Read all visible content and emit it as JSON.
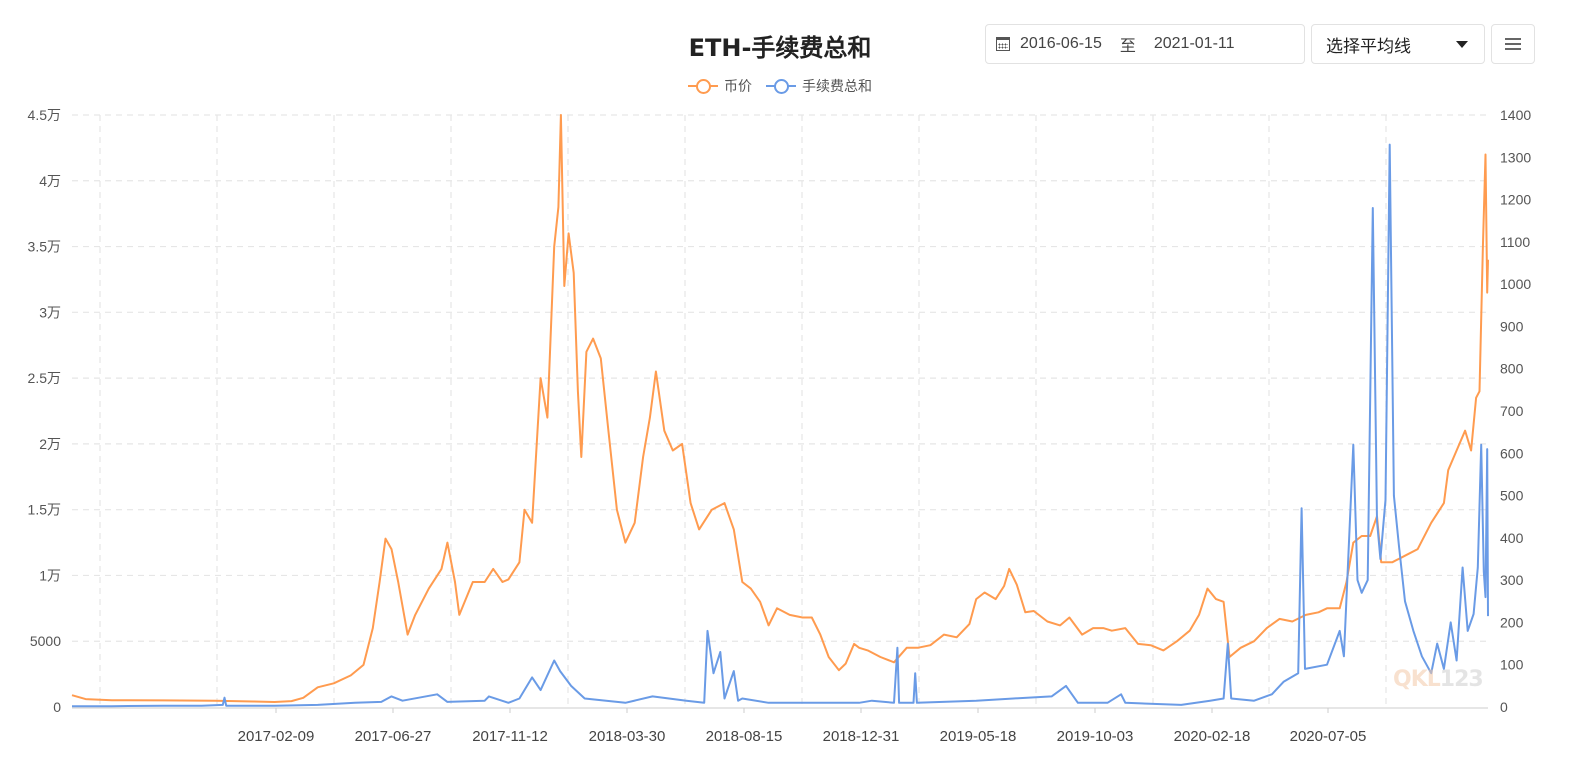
{
  "header": {
    "title": "ETH-手续费总和",
    "date_start": "2016-06-15",
    "date_sep": "至",
    "date_end": "2021-01-11",
    "ma_select_label": "选择平均线",
    "menu_icon": "hamburger-icon",
    "calendar_icon": "calendar-icon"
  },
  "legend": [
    {
      "label": "币价",
      "color": "#ff9b4f"
    },
    {
      "label": "手续费总和",
      "color": "#6a9be6"
    }
  ],
  "watermark": {
    "brand": "QKL",
    "suffix": "123"
  },
  "chart_data": {
    "type": "line",
    "title": "ETH-手续费总和",
    "xlabel": "",
    "ylabel_left": "币价",
    "ylabel_right": "手续费总和",
    "x_range": [
      "2016-06-15",
      "2021-01-11"
    ],
    "x_tick_labels": [
      "2017-02-09",
      "2017-06-27",
      "2017-11-12",
      "2018-03-30",
      "2018-08-15",
      "2018-12-31",
      "2019-05-18",
      "2019-10-03",
      "2020-02-18",
      "2020-07-05"
    ],
    "y_left": {
      "min": 0,
      "max": 45000,
      "ticks": [
        "0",
        "5000",
        "1万",
        "1.5万",
        "2万",
        "2.5万",
        "3万",
        "3.5万",
        "4万",
        "4.5万"
      ]
    },
    "y_right": {
      "min": 0,
      "max": 1400,
      "ticks": [
        "0",
        "100",
        "200",
        "300",
        "400",
        "500",
        "600",
        "700",
        "800",
        "900",
        "1000",
        "1100",
        "1200",
        "1300",
        "1400"
      ]
    },
    "grid": true,
    "legend_position": "top",
    "series": [
      {
        "name": "币价",
        "axis": "left",
        "color": "#ff9b4f",
        "points": [
          [
            "2016-06-15",
            900
          ],
          [
            "2016-07-01",
            600
          ],
          [
            "2016-08-01",
            520
          ],
          [
            "2016-10-01",
            500
          ],
          [
            "2016-12-01",
            480
          ],
          [
            "2017-01-15",
            420
          ],
          [
            "2017-02-09",
            380
          ],
          [
            "2017-03-01",
            450
          ],
          [
            "2017-03-15",
            700
          ],
          [
            "2017-04-01",
            1500
          ],
          [
            "2017-04-20",
            1800
          ],
          [
            "2017-05-10",
            2400
          ],
          [
            "2017-05-25",
            3200
          ],
          [
            "2017-06-05",
            6000
          ],
          [
            "2017-06-13",
            9500
          ],
          [
            "2017-06-20",
            12800
          ],
          [
            "2017-06-27",
            12000
          ],
          [
            "2017-07-05",
            9500
          ],
          [
            "2017-07-16",
            5500
          ],
          [
            "2017-07-25",
            7000
          ],
          [
            "2017-08-10",
            9000
          ],
          [
            "2017-08-25",
            10500
          ],
          [
            "2017-09-01",
            12500
          ],
          [
            "2017-09-10",
            9500
          ],
          [
            "2017-09-15",
            7000
          ],
          [
            "2017-10-01",
            9500
          ],
          [
            "2017-10-15",
            9500
          ],
          [
            "2017-10-25",
            10500
          ],
          [
            "2017-11-05",
            9500
          ],
          [
            "2017-11-12",
            9700
          ],
          [
            "2017-11-25",
            11000
          ],
          [
            "2017-12-01",
            15000
          ],
          [
            "2017-12-10",
            14000
          ],
          [
            "2017-12-20",
            25000
          ],
          [
            "2017-12-28",
            22000
          ],
          [
            "2018-01-05",
            35000
          ],
          [
            "2018-01-10",
            38000
          ],
          [
            "2018-01-13",
            45000
          ],
          [
            "2018-01-17",
            32000
          ],
          [
            "2018-01-22",
            36000
          ],
          [
            "2018-01-28",
            33000
          ],
          [
            "2018-02-02",
            24000
          ],
          [
            "2018-02-06",
            19000
          ],
          [
            "2018-02-12",
            27000
          ],
          [
            "2018-02-20",
            28000
          ],
          [
            "2018-03-01",
            26500
          ],
          [
            "2018-03-10",
            21000
          ],
          [
            "2018-03-20",
            15000
          ],
          [
            "2018-03-30",
            12500
          ],
          [
            "2018-04-10",
            14000
          ],
          [
            "2018-04-20",
            19000
          ],
          [
            "2018-04-28",
            22000
          ],
          [
            "2018-05-05",
            25500
          ],
          [
            "2018-05-15",
            21000
          ],
          [
            "2018-05-25",
            19500
          ],
          [
            "2018-06-05",
            20000
          ],
          [
            "2018-06-15",
            15500
          ],
          [
            "2018-06-25",
            13500
          ],
          [
            "2018-07-10",
            15000
          ],
          [
            "2018-07-25",
            15500
          ],
          [
            "2018-08-05",
            13500
          ],
          [
            "2018-08-15",
            9500
          ],
          [
            "2018-08-25",
            9000
          ],
          [
            "2018-09-05",
            8000
          ],
          [
            "2018-09-15",
            6200
          ],
          [
            "2018-09-25",
            7500
          ],
          [
            "2018-10-10",
            7000
          ],
          [
            "2018-10-25",
            6800
          ],
          [
            "2018-11-05",
            6800
          ],
          [
            "2018-11-15",
            5500
          ],
          [
            "2018-11-25",
            3800
          ],
          [
            "2018-12-07",
            2800
          ],
          [
            "2018-12-15",
            3300
          ],
          [
            "2018-12-25",
            4800
          ],
          [
            "2018-12-31",
            4500
          ],
          [
            "2019-01-10",
            4300
          ],
          [
            "2019-01-25",
            3800
          ],
          [
            "2019-02-10",
            3400
          ],
          [
            "2019-02-25",
            4500
          ],
          [
            "2019-03-10",
            4500
          ],
          [
            "2019-03-25",
            4700
          ],
          [
            "2019-04-10",
            5500
          ],
          [
            "2019-04-25",
            5300
          ],
          [
            "2019-05-10",
            6300
          ],
          [
            "2019-05-18",
            8200
          ],
          [
            "2019-05-28",
            8700
          ],
          [
            "2019-06-10",
            8200
          ],
          [
            "2019-06-20",
            9200
          ],
          [
            "2019-06-26",
            10500
          ],
          [
            "2019-07-05",
            9300
          ],
          [
            "2019-07-15",
            7200
          ],
          [
            "2019-07-25",
            7300
          ],
          [
            "2019-08-10",
            6500
          ],
          [
            "2019-08-25",
            6200
          ],
          [
            "2019-09-05",
            6800
          ],
          [
            "2019-09-20",
            5500
          ],
          [
            "2019-10-03",
            6000
          ],
          [
            "2019-10-15",
            6000
          ],
          [
            "2019-10-25",
            5800
          ],
          [
            "2019-11-10",
            6000
          ],
          [
            "2019-11-25",
            4800
          ],
          [
            "2019-12-10",
            4700
          ],
          [
            "2019-12-25",
            4300
          ],
          [
            "2020-01-10",
            5000
          ],
          [
            "2020-01-25",
            5800
          ],
          [
            "2020-02-05",
            7000
          ],
          [
            "2020-02-15",
            9000
          ],
          [
            "2020-02-25",
            8200
          ],
          [
            "2020-03-05",
            8000
          ],
          [
            "2020-03-12",
            3800
          ],
          [
            "2020-03-25",
            4500
          ],
          [
            "2020-04-10",
            5000
          ],
          [
            "2020-04-25",
            6000
          ],
          [
            "2020-05-10",
            6700
          ],
          [
            "2020-05-25",
            6500
          ],
          [
            "2020-06-10",
            7000
          ],
          [
            "2020-06-25",
            7200
          ],
          [
            "2020-07-05",
            7500
          ],
          [
            "2020-07-20",
            7500
          ],
          [
            "2020-07-28",
            9500
          ],
          [
            "2020-08-05",
            12500
          ],
          [
            "2020-08-15",
            13000
          ],
          [
            "2020-08-25",
            13000
          ],
          [
            "2020-09-02",
            14500
          ],
          [
            "2020-09-07",
            11000
          ],
          [
            "2020-09-20",
            11000
          ],
          [
            "2020-10-05",
            11500
          ],
          [
            "2020-10-20",
            12000
          ],
          [
            "2020-11-05",
            14000
          ],
          [
            "2020-11-20",
            15500
          ],
          [
            "2020-11-25",
            18000
          ],
          [
            "2020-12-05",
            19500
          ],
          [
            "2020-12-15",
            21000
          ],
          [
            "2020-12-22",
            19500
          ],
          [
            "2020-12-28",
            23500
          ],
          [
            "2021-01-01",
            24000
          ],
          [
            "2021-01-05",
            35000
          ],
          [
            "2021-01-08",
            42000
          ],
          [
            "2021-01-10",
            31500
          ],
          [
            "2021-01-11",
            34000
          ]
        ]
      },
      {
        "name": "手续费总和",
        "axis": "right",
        "color": "#6a9be6",
        "points": [
          [
            "2016-06-15",
            2
          ],
          [
            "2016-08-01",
            2
          ],
          [
            "2016-10-01",
            3
          ],
          [
            "2016-11-15",
            3
          ],
          [
            "2016-12-10",
            5
          ],
          [
            "2016-12-12",
            22
          ],
          [
            "2016-12-14",
            3
          ],
          [
            "2017-02-09",
            3
          ],
          [
            "2017-04-01",
            5
          ],
          [
            "2017-05-15",
            10
          ],
          [
            "2017-06-15",
            12
          ],
          [
            "2017-06-27",
            25
          ],
          [
            "2017-07-10",
            15
          ],
          [
            "2017-08-20",
            30
          ],
          [
            "2017-09-01",
            12
          ],
          [
            "2017-10-15",
            15
          ],
          [
            "2017-10-20",
            25
          ],
          [
            "2017-11-12",
            10
          ],
          [
            "2017-11-25",
            20
          ],
          [
            "2017-12-10",
            70
          ],
          [
            "2017-12-20",
            40
          ],
          [
            "2018-01-05",
            110
          ],
          [
            "2018-01-12",
            85
          ],
          [
            "2018-01-25",
            50
          ],
          [
            "2018-02-10",
            20
          ],
          [
            "2018-03-30",
            10
          ],
          [
            "2018-05-01",
            25
          ],
          [
            "2018-06-10",
            15
          ],
          [
            "2018-07-01",
            10
          ],
          [
            "2018-07-05",
            180
          ],
          [
            "2018-07-12",
            80
          ],
          [
            "2018-07-20",
            130
          ],
          [
            "2018-07-25",
            20
          ],
          [
            "2018-08-05",
            85
          ],
          [
            "2018-08-10",
            15
          ],
          [
            "2018-08-15",
            20
          ],
          [
            "2018-09-15",
            10
          ],
          [
            "2018-11-01",
            10
          ],
          [
            "2018-12-31",
            10
          ],
          [
            "2019-01-15",
            15
          ],
          [
            "2019-02-10",
            10
          ],
          [
            "2019-02-14",
            140
          ],
          [
            "2019-02-16",
            10
          ],
          [
            "2019-03-05",
            10
          ],
          [
            "2019-03-07",
            80
          ],
          [
            "2019-03-09",
            10
          ],
          [
            "2019-05-18",
            15
          ],
          [
            "2019-07-01",
            20
          ],
          [
            "2019-08-15",
            25
          ],
          [
            "2019-09-01",
            50
          ],
          [
            "2019-09-08",
            30
          ],
          [
            "2019-09-15",
            10
          ],
          [
            "2019-10-03",
            10
          ],
          [
            "2019-10-20",
            10
          ],
          [
            "2019-11-05",
            30
          ],
          [
            "2019-11-10",
            10
          ],
          [
            "2020-01-15",
            5
          ],
          [
            "2020-02-18",
            15
          ],
          [
            "2020-03-05",
            20
          ],
          [
            "2020-03-10",
            150
          ],
          [
            "2020-03-14",
            20
          ],
          [
            "2020-04-10",
            15
          ],
          [
            "2020-05-01",
            30
          ],
          [
            "2020-05-15",
            60
          ],
          [
            "2020-06-01",
            80
          ],
          [
            "2020-06-05",
            470
          ],
          [
            "2020-06-09",
            90
          ],
          [
            "2020-07-05",
            100
          ],
          [
            "2020-07-20",
            180
          ],
          [
            "2020-07-25",
            120
          ],
          [
            "2020-08-05",
            620
          ],
          [
            "2020-08-10",
            300
          ],
          [
            "2020-08-15",
            270
          ],
          [
            "2020-08-22",
            300
          ],
          [
            "2020-08-28",
            1180
          ],
          [
            "2020-09-02",
            440
          ],
          [
            "2020-09-06",
            350
          ],
          [
            "2020-09-12",
            490
          ],
          [
            "2020-09-17",
            1330
          ],
          [
            "2020-09-22",
            500
          ],
          [
            "2020-09-28",
            380
          ],
          [
            "2020-10-05",
            250
          ],
          [
            "2020-10-15",
            180
          ],
          [
            "2020-10-25",
            120
          ],
          [
            "2020-11-05",
            80
          ],
          [
            "2020-11-12",
            150
          ],
          [
            "2020-11-20",
            90
          ],
          [
            "2020-11-28",
            200
          ],
          [
            "2020-12-05",
            110
          ],
          [
            "2020-12-12",
            330
          ],
          [
            "2020-12-18",
            180
          ],
          [
            "2020-12-25",
            220
          ],
          [
            "2020-12-30",
            330
          ],
          [
            "2021-01-03",
            620
          ],
          [
            "2021-01-06",
            320
          ],
          [
            "2021-01-08",
            260
          ],
          [
            "2021-01-10",
            610
          ],
          [
            "2021-01-11",
            215
          ]
        ]
      }
    ]
  }
}
